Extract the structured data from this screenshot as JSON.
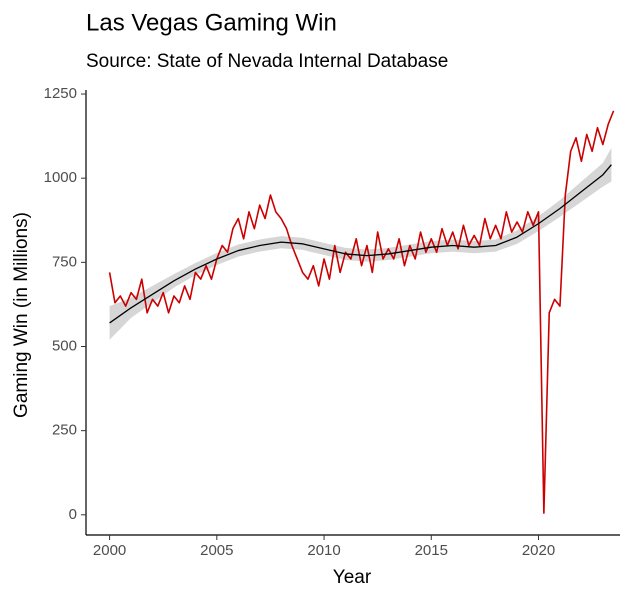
{
  "chart_data": {
    "type": "line",
    "title": "Las Vegas Gaming Win",
    "subtitle": "Source: State of Nevada Internal Database",
    "xlabel": "Year",
    "ylabel": "Gaming Win (in Millions)",
    "xlim": [
      1998.9,
      2023.8
    ],
    "ylim": [
      -60,
      1262
    ],
    "xticks": [
      2000,
      2005,
      2010,
      2015,
      2020
    ],
    "yticks": [
      0,
      250,
      500,
      750,
      1000,
      1250
    ],
    "series": [
      {
        "color": "#cc0000",
        "x": [
          2000,
          2000.25,
          2000.5,
          2000.75,
          2001,
          2001.25,
          2001.5,
          2001.75,
          2002,
          2002.25,
          2002.5,
          2002.75,
          2003,
          2003.25,
          2003.5,
          2003.75,
          2004,
          2004.25,
          2004.5,
          2004.75,
          2005,
          2005.25,
          2005.5,
          2005.75,
          2006,
          2006.25,
          2006.5,
          2006.75,
          2007,
          2007.25,
          2007.5,
          2007.75,
          2008,
          2008.25,
          2008.5,
          2008.75,
          2009,
          2009.25,
          2009.5,
          2009.75,
          2010,
          2010.25,
          2010.5,
          2010.75,
          2011,
          2011.25,
          2011.5,
          2011.75,
          2012,
          2012.25,
          2012.5,
          2012.75,
          2013,
          2013.25,
          2013.5,
          2013.75,
          2014,
          2014.25,
          2014.5,
          2014.75,
          2015,
          2015.25,
          2015.5,
          2015.75,
          2016,
          2016.25,
          2016.5,
          2016.75,
          2017,
          2017.25,
          2017.5,
          2017.75,
          2018,
          2018.25,
          2018.5,
          2018.75,
          2019,
          2019.25,
          2019.5,
          2019.75,
          2020,
          2020.25,
          2020.5,
          2020.75,
          2021,
          2021.25,
          2021.5,
          2021.75,
          2022,
          2022.25,
          2022.5,
          2022.75,
          2023,
          2023.25,
          2023.5
        ],
        "values": [
          720,
          630,
          650,
          620,
          660,
          640,
          700,
          600,
          640,
          620,
          660,
          600,
          650,
          630,
          680,
          640,
          720,
          700,
          740,
          700,
          760,
          800,
          780,
          850,
          880,
          820,
          900,
          850,
          920,
          880,
          950,
          900,
          880,
          850,
          800,
          760,
          720,
          700,
          740,
          680,
          760,
          700,
          800,
          720,
          780,
          760,
          820,
          740,
          800,
          720,
          840,
          760,
          790,
          760,
          820,
          740,
          800,
          760,
          840,
          780,
          820,
          780,
          850,
          800,
          840,
          790,
          860,
          800,
          830,
          800,
          880,
          820,
          860,
          820,
          900,
          840,
          870,
          840,
          900,
          860,
          900,
          5,
          600,
          640,
          620,
          950,
          1080,
          1120,
          1050,
          1130,
          1080,
          1150,
          1100,
          1160,
          1200
        ]
      },
      {
        "color": "#000000",
        "band_color": "#cccccc",
        "x": [
          2000,
          2001,
          2002,
          2003,
          2004,
          2005,
          2006,
          2007,
          2008,
          2009,
          2010,
          2011,
          2012,
          2013,
          2014,
          2015,
          2016,
          2017,
          2018,
          2019,
          2020,
          2021,
          2022,
          2023,
          2023.4
        ],
        "values": [
          570,
          615,
          655,
          695,
          730,
          760,
          785,
          800,
          810,
          805,
          790,
          775,
          770,
          775,
          785,
          795,
          800,
          795,
          800,
          825,
          865,
          910,
          960,
          1010,
          1040
        ],
        "lower": [
          520,
          585,
          630,
          675,
          712,
          742,
          767,
          782,
          792,
          787,
          772,
          757,
          752,
          757,
          767,
          777,
          782,
          777,
          782,
          805,
          843,
          885,
          930,
          975,
          990
        ],
        "upper": [
          620,
          645,
          680,
          715,
          748,
          778,
          803,
          818,
          828,
          823,
          808,
          793,
          788,
          793,
          803,
          813,
          818,
          813,
          818,
          845,
          887,
          935,
          990,
          1045,
          1090
        ]
      }
    ]
  }
}
